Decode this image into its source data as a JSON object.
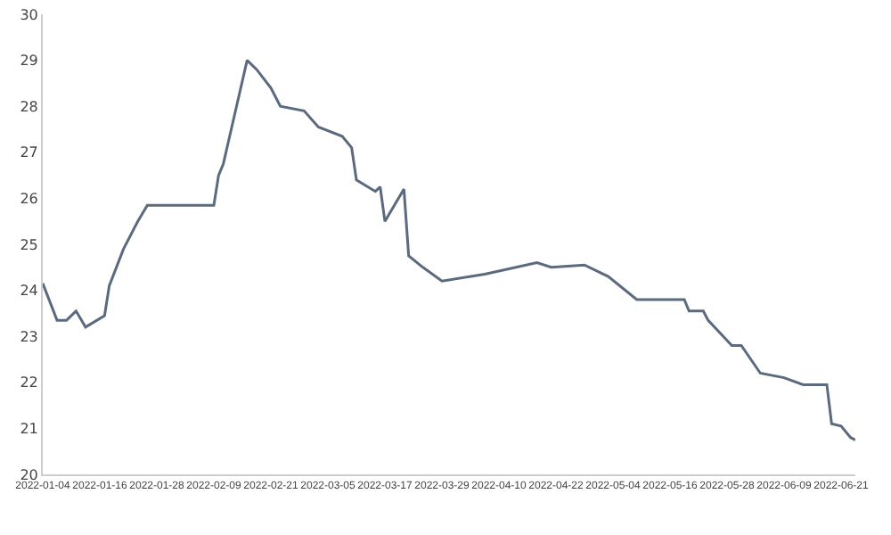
{
  "chart_data": {
    "type": "line",
    "x": [
      "2022-01-04",
      "2022-01-07",
      "2022-01-09",
      "2022-01-11",
      "2022-01-13",
      "2022-01-17",
      "2022-01-18",
      "2022-01-21",
      "2022-01-24",
      "2022-01-26",
      "2022-02-09",
      "2022-02-10",
      "2022-02-11",
      "2022-02-16",
      "2022-02-18",
      "2022-02-21",
      "2022-02-23",
      "2022-02-28",
      "2022-03-03",
      "2022-03-08",
      "2022-03-10",
      "2022-03-11",
      "2022-03-15",
      "2022-03-16",
      "2022-03-17",
      "2022-03-21",
      "2022-03-22",
      "2022-03-25",
      "2022-03-29",
      "2022-04-07",
      "2022-04-18",
      "2022-04-21",
      "2022-04-28",
      "2022-05-03",
      "2022-05-09",
      "2022-05-19",
      "2022-05-20",
      "2022-05-23",
      "2022-05-24",
      "2022-05-29",
      "2022-05-31",
      "2022-06-04",
      "2022-06-09",
      "2022-06-13",
      "2022-06-18",
      "2022-06-19",
      "2022-06-21",
      "2022-06-23",
      "2022-06-24"
    ],
    "series": [
      {
        "color": "#5b6a7e",
        "values": [
          24.15,
          23.35,
          23.35,
          23.55,
          23.2,
          23.45,
          24.1,
          24.9,
          25.5,
          25.85,
          25.85,
          26.5,
          26.75,
          29.0,
          28.8,
          28.4,
          28.0,
          27.9,
          27.55,
          27.35,
          27.1,
          26.4,
          26.15,
          26.25,
          25.5,
          26.2,
          24.75,
          24.5,
          24.2,
          24.35,
          24.6,
          24.5,
          24.55,
          24.3,
          23.8,
          23.8,
          23.55,
          23.55,
          23.35,
          22.8,
          22.8,
          22.2,
          22.1,
          21.95,
          21.95,
          21.1,
          21.05,
          20.8,
          20.75
        ]
      }
    ],
    "xlim": [
      "2022-01-04",
      "2022-06-24"
    ],
    "xticks": [
      "2022-01-04",
      "2022-01-16",
      "2022-01-28",
      "2022-02-09",
      "2022-02-21",
      "2022-03-05",
      "2022-03-17",
      "2022-03-29",
      "2022-04-10",
      "2022-04-22",
      "2022-05-04",
      "2022-05-16",
      "2022-05-28",
      "2022-06-09",
      "2022-06-21"
    ],
    "ylim": [
      20,
      30
    ],
    "yticks": [
      20,
      21,
      22,
      23,
      24,
      25,
      26,
      27,
      28,
      29,
      30
    ],
    "grid": false,
    "marker": "none",
    "line_style": "solid"
  }
}
